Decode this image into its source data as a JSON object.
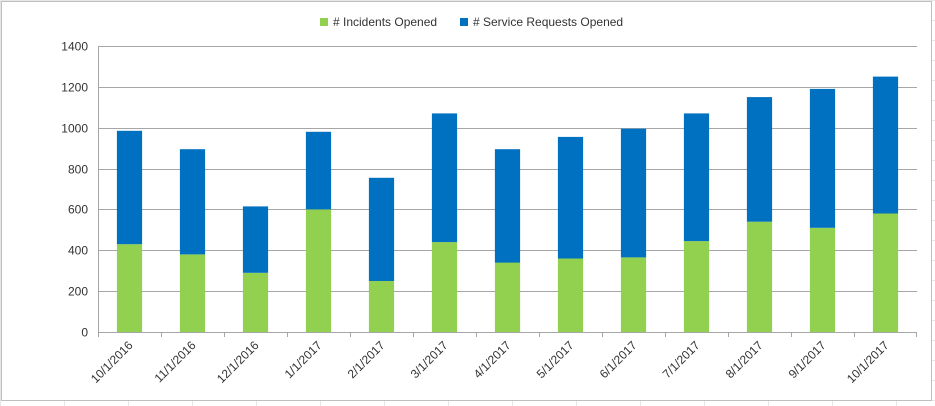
{
  "chart_data": {
    "type": "bar",
    "stacked": true,
    "categories": [
      "10/1/2016",
      "11/1/2016",
      "12/1/2016",
      "1/1/2017",
      "2/1/2017",
      "3/1/2017",
      "4/1/2017",
      "5/1/2017",
      "6/1/2017",
      "7/1/2017",
      "8/1/2017",
      "9/1/2017",
      "10/1/2017"
    ],
    "series": [
      {
        "name": "# Incidents Opened",
        "color": "#92d050",
        "values": [
          430,
          380,
          290,
          600,
          250,
          440,
          340,
          360,
          365,
          445,
          540,
          510,
          580
        ]
      },
      {
        "name": "# Service Requests Opened",
        "color": "#0070c0",
        "values": [
          555,
          515,
          325,
          380,
          505,
          630,
          555,
          595,
          630,
          625,
          610,
          680,
          670
        ]
      }
    ],
    "ylim": [
      0,
      1400
    ],
    "yticks": [
      "0",
      "200",
      "400",
      "600",
      "800",
      "1000",
      "1200",
      "1400"
    ],
    "grid": true,
    "legend": "top-center"
  }
}
